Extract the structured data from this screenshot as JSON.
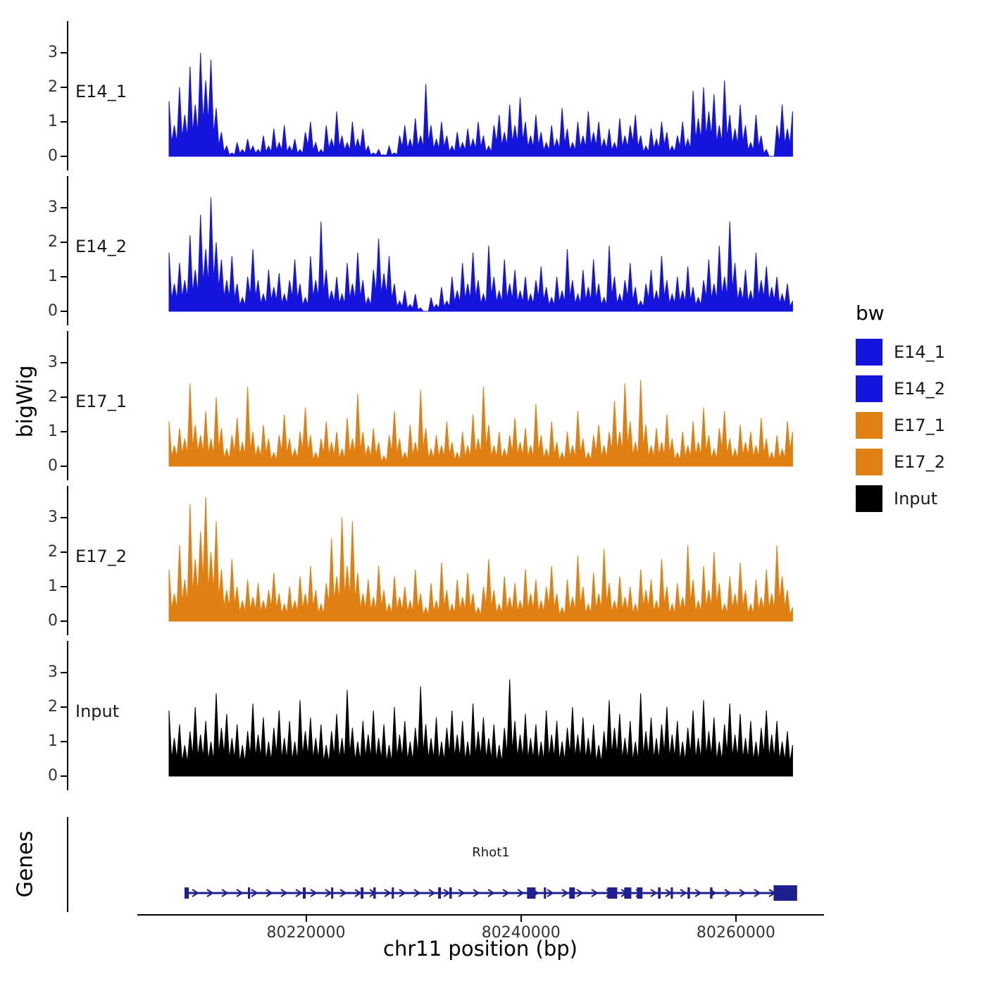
{
  "axes": {
    "y_title": "bigWig",
    "x_title": "chr11 position (bp)",
    "x_range": [
      80204300,
      80268200
    ],
    "x_ticks": [
      80220000,
      80240000,
      80260000
    ],
    "x_tick_labels": [
      "80220000",
      "80240000",
      "80260000"
    ],
    "y_ticks": [
      0,
      1,
      2,
      3
    ]
  },
  "genes": {
    "panel_title": "Genes",
    "gene": {
      "name": "Rhot1",
      "start": 80208690,
      "end": 80265700,
      "strand": "+",
      "color": "#1F1F8F",
      "exons": [
        [
          80208690,
          80209090
        ],
        [
          80214590,
          80214790
        ],
        [
          80219700,
          80219960
        ],
        [
          80222330,
          80222530
        ],
        [
          80225080,
          80225340
        ],
        [
          80226260,
          80226480
        ],
        [
          80227970,
          80228170
        ],
        [
          80232290,
          80232550
        ],
        [
          80233340,
          80233560
        ],
        [
          80240560,
          80241350
        ],
        [
          80242130,
          80242330
        ],
        [
          80244490,
          80245020
        ],
        [
          80248040,
          80248960
        ],
        [
          80249610,
          80250270
        ],
        [
          80250790,
          80251310
        ],
        [
          80252750,
          80252990
        ],
        [
          80253930,
          80254140
        ],
        [
          80255500,
          80255730
        ],
        [
          80257600,
          80257820
        ],
        [
          80263510,
          80265700
        ]
      ]
    }
  },
  "legend": {
    "title": "bw",
    "items": [
      {
        "label": "E14_1",
        "color": "#1414DC"
      },
      {
        "label": "E14_2",
        "color": "#1414DC"
      },
      {
        "label": "E17_1",
        "color": "#E07F12"
      },
      {
        "label": "E17_2",
        "color": "#E07F12"
      },
      {
        "label": "Input",
        "color": "#000000"
      }
    ]
  },
  "chart_data": {
    "type": "area",
    "title": "",
    "xlabel": "chr11 position (bp)",
    "ylabel": "bigWig",
    "x_start": 80207250,
    "x_end": 80265280,
    "ylim": [
      0,
      3.8
    ],
    "y_ticks": [
      0,
      1,
      2,
      3
    ],
    "grid": false,
    "legend_position": "right",
    "series": [
      {
        "name": "E14_1",
        "color": "#1414DC",
        "values": [
          1.6,
          0.9,
          2.0,
          1.2,
          2.6,
          1.5,
          3.0,
          2.2,
          2.8,
          1.4,
          0.7,
          0.3,
          0.1,
          0.4,
          0.2,
          0.5,
          0.3,
          0.2,
          0.6,
          0.3,
          0.8,
          0.4,
          0.9,
          0.3,
          0.5,
          0.2,
          0.7,
          1.0,
          0.4,
          0.2,
          0.9,
          0.5,
          1.3,
          0.6,
          0.4,
          1.0,
          0.5,
          0.8,
          0.3,
          0.1,
          0.2,
          0.05,
          0.3,
          0.1,
          0.6,
          0.9,
          0.5,
          1.1,
          0.6,
          2.1,
          0.9,
          0.5,
          1.0,
          0.6,
          0.3,
          0.7,
          0.4,
          0.8,
          0.5,
          1.0,
          0.6,
          0.3,
          0.9,
          1.2,
          0.7,
          1.5,
          0.9,
          1.7,
          1.0,
          0.6,
          1.2,
          0.7,
          0.4,
          0.9,
          0.5,
          1.4,
          0.8,
          0.4,
          1.0,
          0.6,
          1.3,
          0.7,
          1.0,
          0.5,
          0.8,
          0.4,
          1.1,
          0.6,
          0.9,
          1.2,
          0.6,
          0.3,
          0.8,
          0.5,
          1.0,
          0.7,
          0.3,
          0.6,
          1.0,
          0.5,
          1.9,
          1.1,
          2.0,
          1.3,
          1.8,
          0.9,
          2.2,
          1.2,
          0.8,
          1.5,
          0.9,
          0.4,
          1.2,
          0.6,
          0.2,
          0.0,
          0.9,
          1.5,
          0.8,
          1.3
        ]
      },
      {
        "name": "E14_2",
        "color": "#1414DC",
        "values": [
          1.7,
          0.8,
          1.4,
          0.9,
          2.2,
          1.2,
          2.8,
          1.8,
          3.3,
          2.0,
          1.5,
          0.9,
          1.6,
          0.8,
          0.4,
          1.0,
          1.8,
          0.9,
          0.5,
          1.2,
          0.7,
          1.1,
          0.5,
          0.9,
          1.5,
          0.8,
          0.4,
          1.6,
          0.9,
          2.6,
          1.2,
          0.6,
          1.0,
          0.5,
          1.4,
          0.8,
          1.7,
          0.9,
          0.4,
          1.2,
          2.1,
          1.1,
          1.6,
          0.8,
          0.3,
          0.6,
          0.2,
          0.5,
          0.1,
          0.0,
          0.4,
          0.2,
          0.7,
          0.3,
          1.0,
          0.6,
          1.4,
          0.8,
          1.7,
          0.9,
          0.5,
          1.9,
          1.0,
          0.6,
          1.5,
          0.8,
          1.2,
          0.6,
          1.0,
          0.5,
          0.9,
          1.3,
          0.7,
          0.4,
          1.0,
          0.6,
          1.8,
          0.9,
          0.5,
          1.2,
          0.7,
          1.5,
          0.8,
          0.4,
          1.9,
          1.0,
          0.5,
          0.9,
          1.4,
          0.7,
          0.3,
          0.8,
          1.2,
          0.6,
          1.6,
          0.9,
          0.5,
          1.0,
          0.6,
          1.3,
          0.7,
          0.4,
          0.9,
          1.5,
          0.8,
          1.9,
          1.0,
          2.6,
          1.4,
          0.7,
          1.2,
          0.6,
          1.7,
          0.9,
          1.3,
          0.7,
          1.0,
          0.5,
          0.8,
          0.3
        ]
      },
      {
        "name": "E17_1",
        "color": "#E07F12",
        "values": [
          1.3,
          0.6,
          1.1,
          0.8,
          2.4,
          1.2,
          0.9,
          1.6,
          0.8,
          2.0,
          1.1,
          0.5,
          0.9,
          1.4,
          0.7,
          2.3,
          1.0,
          0.6,
          1.2,
          0.8,
          0.4,
          0.9,
          1.5,
          0.8,
          0.5,
          1.0,
          1.7,
          0.9,
          0.4,
          0.8,
          1.3,
          0.7,
          1.0,
          0.5,
          1.4,
          0.8,
          2.1,
          1.0,
          0.6,
          1.1,
          0.7,
          0.3,
          0.9,
          1.6,
          0.8,
          0.4,
          1.2,
          0.7,
          2.2,
          1.1,
          0.5,
          0.9,
          0.6,
          1.3,
          0.7,
          0.4,
          1.0,
          0.6,
          1.5,
          0.8,
          2.3,
          1.2,
          0.6,
          1.0,
          0.5,
          0.9,
          1.4,
          0.7,
          1.1,
          0.6,
          1.8,
          0.9,
          0.5,
          1.3,
          0.7,
          0.4,
          1.0,
          0.6,
          1.6,
          0.8,
          0.4,
          0.9,
          1.2,
          0.6,
          1.0,
          1.9,
          1.0,
          2.4,
          1.3,
          0.7,
          2.5,
          1.2,
          0.6,
          1.1,
          0.7,
          1.5,
          0.8,
          0.4,
          1.0,
          0.6,
          1.3,
          0.7,
          1.7,
          0.9,
          0.5,
          1.1,
          1.6,
          0.8,
          0.5,
          1.2,
          0.7,
          1.0,
          0.6,
          1.4,
          0.8,
          0.4,
          0.9,
          0.5,
          1.3,
          1.0
        ]
      },
      {
        "name": "E17_2",
        "color": "#E07F12",
        "values": [
          1.5,
          0.8,
          2.2,
          1.2,
          3.4,
          1.8,
          2.6,
          3.6,
          2.0,
          2.9,
          1.5,
          0.9,
          1.8,
          1.0,
          0.6,
          1.2,
          0.7,
          1.1,
          0.6,
          0.9,
          1.4,
          0.8,
          0.5,
          1.0,
          0.6,
          1.3,
          0.8,
          1.6,
          0.9,
          0.5,
          1.1,
          2.4,
          1.3,
          3.0,
          1.6,
          2.9,
          1.4,
          0.8,
          1.2,
          0.7,
          1.6,
          0.9,
          0.5,
          1.3,
          0.7,
          1.0,
          0.6,
          1.5,
          0.8,
          0.4,
          1.1,
          0.6,
          1.7,
          0.9,
          0.5,
          1.2,
          0.7,
          1.4,
          0.8,
          0.4,
          1.0,
          1.8,
          0.9,
          0.5,
          1.3,
          0.7,
          1.1,
          0.6,
          1.5,
          0.8,
          1.2,
          0.6,
          1.0,
          1.6,
          0.8,
          0.4,
          1.2,
          0.7,
          1.9,
          1.0,
          0.5,
          1.4,
          0.8,
          2.1,
          1.1,
          0.6,
          1.3,
          0.7,
          1.0,
          0.5,
          1.5,
          0.9,
          1.2,
          0.6,
          1.8,
          1.0,
          0.5,
          1.1,
          0.7,
          2.2,
          1.2,
          0.6,
          1.6,
          0.9,
          2.0,
          1.1,
          0.5,
          1.3,
          0.8,
          1.7,
          0.9,
          0.5,
          1.2,
          0.7,
          1.5,
          0.8,
          2.2,
          1.3,
          0.9,
          0.4
        ]
      },
      {
        "name": "Input",
        "color": "#000000",
        "values": [
          1.9,
          1.1,
          1.5,
          0.9,
          1.3,
          2.0,
          1.2,
          1.6,
          1.0,
          2.4,
          1.4,
          1.8,
          1.1,
          1.5,
          0.9,
          1.3,
          2.1,
          1.2,
          1.7,
          1.0,
          1.4,
          1.9,
          1.1,
          1.6,
          1.0,
          2.2,
          1.3,
          1.7,
          1.1,
          1.5,
          0.9,
          1.3,
          1.8,
          1.1,
          2.5,
          1.4,
          1.0,
          1.6,
          1.2,
          1.9,
          1.1,
          1.5,
          0.9,
          2.0,
          1.2,
          1.6,
          1.0,
          1.4,
          2.6,
          1.5,
          1.1,
          1.7,
          1.0,
          1.4,
          1.9,
          1.2,
          1.6,
          1.0,
          2.1,
          1.3,
          1.7,
          1.1,
          1.5,
          0.9,
          1.4,
          2.8,
          1.6,
          1.2,
          1.8,
          1.1,
          1.5,
          1.0,
          1.9,
          1.2,
          1.6,
          1.0,
          1.4,
          2.0,
          1.2,
          1.7,
          1.1,
          1.5,
          0.9,
          1.3,
          2.2,
          1.4,
          1.8,
          1.1,
          1.6,
          1.0,
          2.4,
          1.3,
          1.7,
          1.1,
          1.5,
          2.0,
          1.2,
          1.6,
          1.0,
          1.4,
          1.9,
          1.1,
          2.2,
          1.3,
          1.7,
          1.0,
          1.5,
          2.1,
          1.2,
          1.8,
          1.1,
          1.6,
          1.0,
          1.4,
          1.9,
          1.2,
          1.6,
          1.0,
          1.3,
          0.9
        ]
      }
    ]
  }
}
